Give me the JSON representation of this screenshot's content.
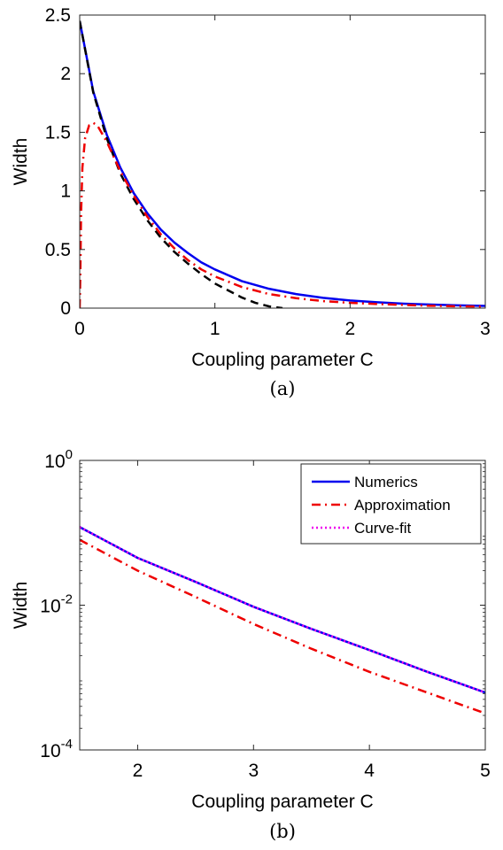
{
  "chart_data": [
    {
      "type": "line",
      "caption": "(a)",
      "xlabel": "Coupling parameter C",
      "ylabel": "Width",
      "xlim": [
        0,
        3
      ],
      "ylim": [
        0,
        2.5
      ],
      "x_ticks": [
        0,
        1,
        2,
        3
      ],
      "x_tick_labels": [
        "0",
        "1",
        "2",
        "3"
      ],
      "y_ticks": [
        0,
        0.5,
        1,
        1.5,
        2,
        2.5
      ],
      "y_tick_labels": [
        "0",
        "0.5",
        "1",
        "1.5",
        "2",
        "2.5"
      ],
      "grid": false,
      "series": [
        {
          "color": "#0000ee",
          "dash": "solid",
          "x": [
            0,
            0.1,
            0.2,
            0.3,
            0.4,
            0.5,
            0.6,
            0.7,
            0.8,
            0.9,
            1.0,
            1.2,
            1.4,
            1.6,
            1.8,
            2.0,
            2.2,
            2.4,
            2.6,
            2.8,
            3.0
          ],
          "y": [
            2.45,
            1.85,
            1.48,
            1.2,
            0.98,
            0.81,
            0.67,
            0.56,
            0.47,
            0.39,
            0.33,
            0.23,
            0.165,
            0.12,
            0.088,
            0.065,
            0.05,
            0.038,
            0.03,
            0.024,
            0.019
          ]
        },
        {
          "color": "#000000",
          "dash": "dashed",
          "x": [
            0,
            0.1,
            0.2,
            0.3,
            0.4,
            0.5,
            0.6,
            0.7,
            0.8,
            0.9,
            1.0,
            1.1,
            1.2,
            1.3,
            1.4,
            1.5
          ],
          "y": [
            2.45,
            1.84,
            1.45,
            1.15,
            0.93,
            0.75,
            0.6,
            0.48,
            0.38,
            0.29,
            0.21,
            0.15,
            0.09,
            0.045,
            0.015,
            0.0
          ]
        },
        {
          "color": "#ee0000",
          "dash": "dashdot",
          "x": [
            0,
            0.005,
            0.01,
            0.02,
            0.04,
            0.07,
            0.1,
            0.13,
            0.17,
            0.2,
            0.3,
            0.4,
            0.5,
            0.6,
            0.7,
            0.8,
            0.9,
            1.0,
            1.2,
            1.4,
            1.6,
            1.8,
            2.0,
            2.2,
            2.4,
            2.6,
            2.8,
            3.0
          ],
          "y": [
            0,
            0.3,
            0.8,
            1.2,
            1.45,
            1.56,
            1.58,
            1.56,
            1.48,
            1.42,
            1.17,
            0.96,
            0.78,
            0.63,
            0.51,
            0.41,
            0.33,
            0.27,
            0.18,
            0.12,
            0.085,
            0.06,
            0.045,
            0.035,
            0.027,
            0.02,
            0.016,
            0.013
          ]
        }
      ]
    },
    {
      "type": "line",
      "caption": "(b)",
      "xlabel": "Coupling parameter C",
      "ylabel": "Width",
      "xlim": [
        1.5,
        5
      ],
      "ylim": [
        0.0001,
        1
      ],
      "y_scale": "log",
      "x_ticks": [
        2,
        3,
        4,
        5
      ],
      "x_tick_labels": [
        "2",
        "3",
        "4",
        "5"
      ],
      "y_ticks": [
        0.0001,
        0.01,
        1
      ],
      "y_tick_labels": [
        {
          "base": "10",
          "exp": "-4"
        },
        {
          "base": "10",
          "exp": "-2"
        },
        {
          "base": "10",
          "exp": "0"
        }
      ],
      "grid": false,
      "legend_position": "top-right",
      "series": [
        {
          "name": "Numerics",
          "color": "#0000ee",
          "dash": "solid",
          "x": [
            1.5,
            2,
            2.5,
            3,
            3.5,
            4,
            4.5,
            5
          ],
          "y": [
            0.12,
            0.045,
            0.021,
            0.0095,
            0.0047,
            0.0024,
            0.0012,
            0.00062
          ]
        },
        {
          "name": "Approximation",
          "color": "#ee0000",
          "dash": "dashdot",
          "x": [
            1.5,
            2,
            2.5,
            3,
            3.5,
            4,
            4.5,
            5
          ],
          "y": [
            0.08,
            0.03,
            0.013,
            0.0055,
            0.0025,
            0.0012,
            0.00062,
            0.00032
          ]
        },
        {
          "name": "Curve-fit",
          "color": "#ee00ee",
          "dash": "dotted",
          "x": [
            1.5,
            2,
            2.5,
            3,
            3.5,
            4,
            4.5,
            5
          ],
          "y": [
            0.12,
            0.045,
            0.021,
            0.0095,
            0.0047,
            0.0024,
            0.0012,
            0.00062
          ]
        }
      ]
    }
  ]
}
